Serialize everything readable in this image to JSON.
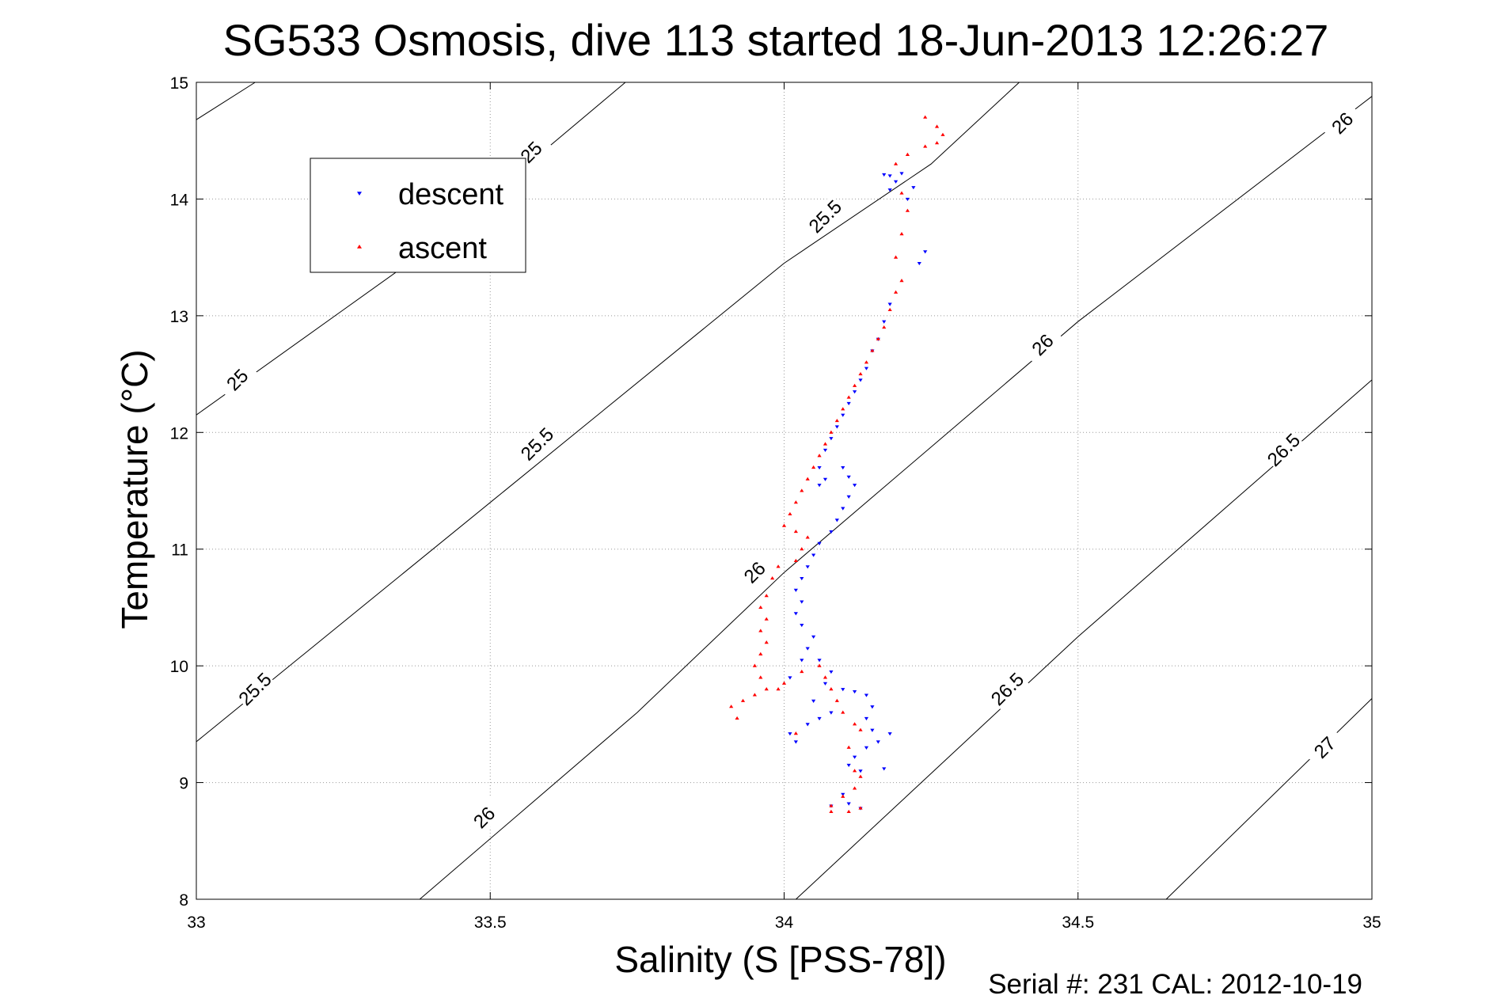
{
  "chart_data": {
    "type": "scatter",
    "title": "SG533 Osmosis, dive 113 started 18-Jun-2013 12:26:27",
    "xlabel": "Salinity (S [PSS-78])",
    "ylabel": "Temperature (°C)",
    "xlim": [
      33,
      35
    ],
    "ylim": [
      8,
      15
    ],
    "xticks": [
      33,
      33.5,
      34,
      34.5,
      35
    ],
    "yticks": [
      8,
      9,
      10,
      11,
      12,
      13,
      14,
      15
    ],
    "xtick_labels": [
      "33",
      "33.5",
      "34",
      "34.5",
      "35"
    ],
    "ytick_labels": [
      "8",
      "9",
      "10",
      "11",
      "12",
      "13",
      "14",
      "15"
    ],
    "grid": true,
    "legend_position": "top-left",
    "footer": "Serial #: 231  CAL: 2012-10-19",
    "density_contours": [
      {
        "label": "25",
        "points": [
          [
            33,
            14.68
          ],
          [
            33.1,
            15
          ]
        ]
      },
      {
        "label": "25",
        "points": [
          [
            33,
            12.15
          ],
          [
            33.25,
            13.05
          ],
          [
            33.5,
            13.95
          ],
          [
            33.6,
            14.45
          ],
          [
            33.73,
            15
          ]
        ]
      },
      {
        "label": "25.5",
        "points": [
          [
            33,
            9.35
          ],
          [
            33.5,
            11.4
          ],
          [
            34,
            13.45
          ],
          [
            34.25,
            14.3
          ],
          [
            34.4,
            15
          ]
        ]
      },
      {
        "label": "26",
        "points": [
          [
            33.38,
            8
          ],
          [
            33.75,
            9.6
          ],
          [
            34,
            10.8
          ],
          [
            34.5,
            12.95
          ],
          [
            35,
            14.88
          ]
        ]
      },
      {
        "label": "26.5",
        "points": [
          [
            34.02,
            8
          ],
          [
            34.5,
            10.25
          ],
          [
            35,
            12.45
          ]
        ]
      },
      {
        "label": "27",
        "points": [
          [
            34.65,
            8
          ],
          [
            35,
            9.72
          ]
        ]
      }
    ],
    "contour_label_positions": [
      {
        "label": "25",
        "at": [
          33.57,
          14.4
        ]
      },
      {
        "label": "25",
        "at": [
          33.07,
          12.45
        ]
      },
      {
        "label": "25.5",
        "at": [
          34.07,
          13.85
        ]
      },
      {
        "label": "25.5",
        "at": [
          33.58,
          11.9
        ]
      },
      {
        "label": "25.5",
        "at": [
          33.1,
          9.8
        ]
      },
      {
        "label": "26",
        "at": [
          34.95,
          14.65
        ]
      },
      {
        "label": "26",
        "at": [
          34.44,
          12.75
        ]
      },
      {
        "label": "26",
        "at": [
          33.95,
          10.8
        ]
      },
      {
        "label": "26",
        "at": [
          33.49,
          8.7
        ]
      },
      {
        "label": "26.5",
        "at": [
          34.85,
          11.85
        ]
      },
      {
        "label": "26.5",
        "at": [
          34.38,
          9.8
        ]
      },
      {
        "label": "27",
        "at": [
          34.92,
          9.3
        ]
      }
    ],
    "series": [
      {
        "name": "descent",
        "color": "#0000ff",
        "marker": "triangle-down",
        "points": [
          [
            34.18,
            14.2
          ],
          [
            34.19,
            14.15
          ],
          [
            34.18,
            14.08
          ],
          [
            34.2,
            14.22
          ],
          [
            34.17,
            14.21
          ],
          [
            34.22,
            14.1
          ],
          [
            34.21,
            14.0
          ],
          [
            34.24,
            13.55
          ],
          [
            34.23,
            13.45
          ],
          [
            34.18,
            13.1
          ],
          [
            34.17,
            12.95
          ],
          [
            34.16,
            12.8
          ],
          [
            34.15,
            12.7
          ],
          [
            34.14,
            12.55
          ],
          [
            34.13,
            12.45
          ],
          [
            34.12,
            12.35
          ],
          [
            34.11,
            12.25
          ],
          [
            34.1,
            12.15
          ],
          [
            34.09,
            12.05
          ],
          [
            34.08,
            11.95
          ],
          [
            34.07,
            11.85
          ],
          [
            34.06,
            11.7
          ],
          [
            34.07,
            11.6
          ],
          [
            34.06,
            11.55
          ],
          [
            34.1,
            11.7
          ],
          [
            34.11,
            11.62
          ],
          [
            34.12,
            11.55
          ],
          [
            34.11,
            11.45
          ],
          [
            34.1,
            11.35
          ],
          [
            34.09,
            11.25
          ],
          [
            34.08,
            11.15
          ],
          [
            34.06,
            11.05
          ],
          [
            34.05,
            10.95
          ],
          [
            34.04,
            10.85
          ],
          [
            34.03,
            10.75
          ],
          [
            34.02,
            10.65
          ],
          [
            34.03,
            10.55
          ],
          [
            34.02,
            10.45
          ],
          [
            34.03,
            10.35
          ],
          [
            34.05,
            10.25
          ],
          [
            34.04,
            10.15
          ],
          [
            34.03,
            10.05
          ],
          [
            34.06,
            10.05
          ],
          [
            34.08,
            9.95
          ],
          [
            34.07,
            9.85
          ],
          [
            34.1,
            9.8
          ],
          [
            34.12,
            9.78
          ],
          [
            34.14,
            9.75
          ],
          [
            34.15,
            9.65
          ],
          [
            34.14,
            9.55
          ],
          [
            34.15,
            9.45
          ],
          [
            34.18,
            9.42
          ],
          [
            34.16,
            9.35
          ],
          [
            34.14,
            9.3
          ],
          [
            34.12,
            9.22
          ],
          [
            34.11,
            9.15
          ],
          [
            34.13,
            9.1
          ],
          [
            34.17,
            9.12
          ],
          [
            34.1,
            8.9
          ],
          [
            34.11,
            8.82
          ],
          [
            34.13,
            8.78
          ],
          [
            34.08,
            8.8
          ],
          [
            34.02,
            9.35
          ],
          [
            34.01,
            9.42
          ],
          [
            34.04,
            9.5
          ],
          [
            34.06,
            9.55
          ],
          [
            34.08,
            9.6
          ],
          [
            34.05,
            9.7
          ],
          [
            34.01,
            9.9
          ]
        ]
      },
      {
        "name": "ascent",
        "color": "#ff0000",
        "marker": "triangle-up",
        "points": [
          [
            34.24,
            14.7
          ],
          [
            34.26,
            14.62
          ],
          [
            34.27,
            14.55
          ],
          [
            34.26,
            14.48
          ],
          [
            34.24,
            14.45
          ],
          [
            34.21,
            14.38
          ],
          [
            34.19,
            14.3
          ],
          [
            34.2,
            14.05
          ],
          [
            34.21,
            13.9
          ],
          [
            34.2,
            13.7
          ],
          [
            34.19,
            13.5
          ],
          [
            34.2,
            13.3
          ],
          [
            34.19,
            13.2
          ],
          [
            34.18,
            13.05
          ],
          [
            34.17,
            12.9
          ],
          [
            34.16,
            12.8
          ],
          [
            34.15,
            12.7
          ],
          [
            34.14,
            12.6
          ],
          [
            34.13,
            12.5
          ],
          [
            34.12,
            12.4
          ],
          [
            34.11,
            12.3
          ],
          [
            34.1,
            12.2
          ],
          [
            34.09,
            12.1
          ],
          [
            34.08,
            12.0
          ],
          [
            34.07,
            11.9
          ],
          [
            34.06,
            11.8
          ],
          [
            34.05,
            11.7
          ],
          [
            34.04,
            11.6
          ],
          [
            34.03,
            11.5
          ],
          [
            34.02,
            11.4
          ],
          [
            34.01,
            11.3
          ],
          [
            34.0,
            11.2
          ],
          [
            34.02,
            11.15
          ],
          [
            34.04,
            11.1
          ],
          [
            34.03,
            11.0
          ],
          [
            34.02,
            10.9
          ],
          [
            33.99,
            10.85
          ],
          [
            33.98,
            10.75
          ],
          [
            33.97,
            10.6
          ],
          [
            33.96,
            10.5
          ],
          [
            33.97,
            10.4
          ],
          [
            33.96,
            10.3
          ],
          [
            33.97,
            10.2
          ],
          [
            33.96,
            10.1
          ],
          [
            33.95,
            10.0
          ],
          [
            33.96,
            9.9
          ],
          [
            33.97,
            9.8
          ],
          [
            33.95,
            9.75
          ],
          [
            33.93,
            9.7
          ],
          [
            33.91,
            9.65
          ],
          [
            33.92,
            9.55
          ],
          [
            33.99,
            9.8
          ],
          [
            34.0,
            9.85
          ],
          [
            34.03,
            9.95
          ],
          [
            34.06,
            10.0
          ],
          [
            34.07,
            9.9
          ],
          [
            34.08,
            9.8
          ],
          [
            34.09,
            9.7
          ],
          [
            34.1,
            9.6
          ],
          [
            34.12,
            9.5
          ],
          [
            34.13,
            9.45
          ],
          [
            34.11,
            9.3
          ],
          [
            34.12,
            9.1
          ],
          [
            34.13,
            9.05
          ],
          [
            34.12,
            8.95
          ],
          [
            34.1,
            8.88
          ],
          [
            34.08,
            8.8
          ],
          [
            34.08,
            8.75
          ],
          [
            34.11,
            8.75
          ],
          [
            34.13,
            8.78
          ],
          [
            34.02,
            9.42
          ]
        ]
      }
    ]
  }
}
